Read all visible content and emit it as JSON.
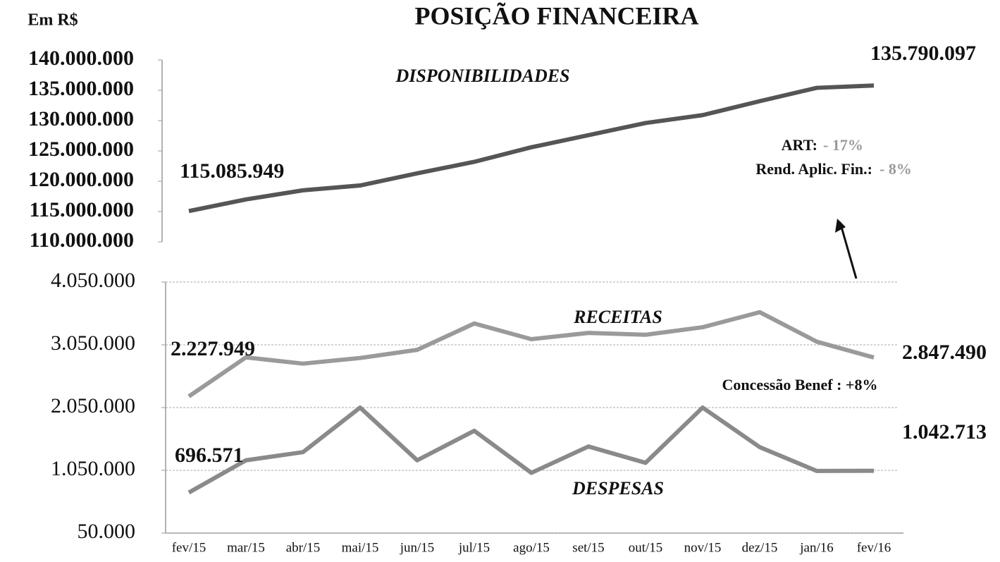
{
  "chart_data": [
    {
      "type": "line",
      "title": "POSIÇÃO FINANCEIRA",
      "y_label": "Em R$",
      "ylim": [
        110000000,
        140000000
      ],
      "yticks": [
        {
          "value": 110000000,
          "label": "110.000.000"
        },
        {
          "value": 115000000,
          "label": "115.000.000"
        },
        {
          "value": 120000000,
          "label": "120.000.000"
        },
        {
          "value": 125000000,
          "label": "125.000.000"
        },
        {
          "value": 130000000,
          "label": "130.000.000"
        },
        {
          "value": 135000000,
          "label": "135.000.000"
        },
        {
          "value": 140000000,
          "label": "140.000.000"
        }
      ],
      "grid": false,
      "series": [
        {
          "name": "DISPONIBILIDADES",
          "color": "#555555",
          "values": [
            115085949,
            117000000,
            118500000,
            119300000,
            121300000,
            123200000,
            125600000,
            127600000,
            129600000,
            130900000,
            133200000,
            135400000,
            135790097
          ],
          "value_labels": [
            "115.085.949",
            null,
            null,
            null,
            null,
            null,
            null,
            null,
            null,
            null,
            null,
            null,
            "135.790.097"
          ]
        }
      ],
      "annotations": [
        "ART:",
        "- 17%",
        "Rend. Aplic. Fin.:",
        "- 8%"
      ]
    },
    {
      "type": "line",
      "categories": [
        "fev/15",
        "mar/15",
        "abr/15",
        "mai/15",
        "jun/15",
        "jul/15",
        "ago/15",
        "set/15",
        "out/15",
        "nov/15",
        "dez/15",
        "jan/16",
        "fev/16"
      ],
      "ylim": [
        50000,
        4050000
      ],
      "yticks": [
        {
          "value": 50000,
          "label": "50.000"
        },
        {
          "value": 1050000,
          "label": "1.050.000"
        },
        {
          "value": 2050000,
          "label": "2.050.000"
        },
        {
          "value": 3050000,
          "label": "3.050.000"
        },
        {
          "value": 4050000,
          "label": "4.050.000"
        }
      ],
      "grid": true,
      "series": [
        {
          "name": "RECEITAS",
          "color": "#9a9a9a",
          "values": [
            2227949,
            2850000,
            2750000,
            2840000,
            2970000,
            3390000,
            3140000,
            3240000,
            3210000,
            3330000,
            3570000,
            3100000,
            2847490
          ],
          "value_labels": [
            "2.227.949",
            null,
            null,
            null,
            null,
            null,
            null,
            null,
            null,
            null,
            null,
            null,
            "2.847.490"
          ]
        },
        {
          "name": "DESPESAS",
          "color": "#8a8a8a",
          "values": [
            696571,
            1210000,
            1340000,
            2050000,
            1210000,
            1680000,
            1010000,
            1430000,
            1170000,
            2050000,
            1420000,
            1040000,
            1042713
          ],
          "value_labels": [
            "696.571",
            null,
            null,
            null,
            null,
            null,
            null,
            null,
            null,
            null,
            null,
            null,
            "1.042.713"
          ]
        }
      ],
      "annotations": [
        "Concessão  Benef : +8%"
      ]
    }
  ]
}
